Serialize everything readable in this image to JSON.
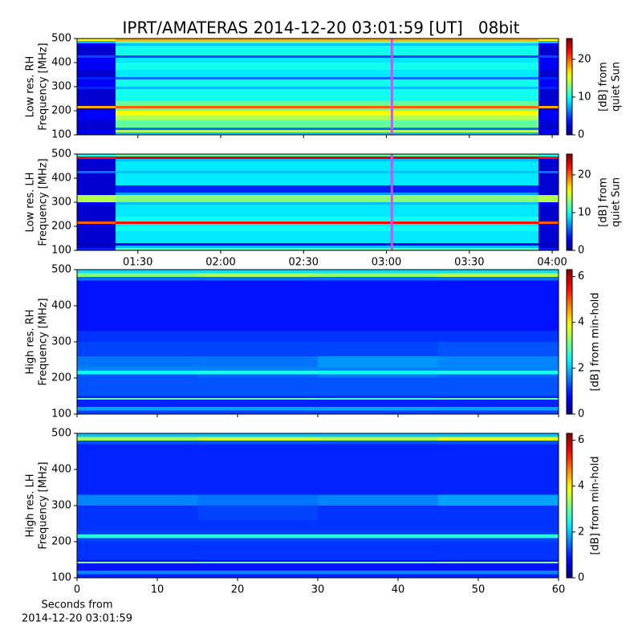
{
  "title": "IPRT/AMATERAS 2014-12-20 03:01:59 [UT]   08bit",
  "chart_data": [
    {
      "type": "heatmap",
      "ylabel": [
        "Low res. RH",
        "Frequency [MHz]"
      ],
      "ylim": [
        100,
        500
      ],
      "yticks": [
        100,
        200,
        300,
        400,
        500
      ],
      "xlim": [
        68,
        242.3
      ],
      "xticks": [
        90,
        120,
        150,
        180,
        210,
        240
      ],
      "show_xticklabels": false,
      "x_edges": [
        68,
        82,
        235,
        242.3
      ],
      "y_edges": [
        100,
        110,
        120,
        130,
        160,
        180,
        200,
        210,
        220,
        240,
        290,
        300,
        330,
        340,
        370,
        400,
        420,
        430,
        470,
        480,
        490,
        500
      ],
      "z": [
        [
          2,
          8,
          2
        ],
        [
          3,
          14,
          3
        ],
        [
          2,
          6,
          2
        ],
        [
          2,
          12,
          2
        ],
        [
          3,
          14,
          3
        ],
        [
          3,
          16,
          3
        ],
        [
          2,
          12,
          2
        ],
        [
          18,
          20,
          18
        ],
        [
          2,
          12,
          2
        ],
        [
          2,
          10,
          2
        ],
        [
          4,
          8,
          4
        ],
        [
          3,
          10,
          3
        ],
        [
          4,
          6,
          4
        ],
        [
          2,
          9,
          2
        ],
        [
          3,
          10,
          3
        ],
        [
          3,
          9,
          3
        ],
        [
          5,
          5,
          5
        ],
        [
          2,
          10,
          2
        ],
        [
          3,
          8,
          3
        ],
        [
          8,
          12,
          8
        ],
        [
          16,
          18,
          16
        ]
      ],
      "clim": [
        0,
        25.5
      ],
      "cticks": [
        0,
        10,
        20
      ],
      "clabel": [
        "[dB] from",
        "quiet Sun"
      ],
      "cursor_x": 181.98,
      "cursor_color": "#d050ff"
    },
    {
      "type": "heatmap",
      "ylabel": [
        "Low res. LH",
        "Frequency [MHz]"
      ],
      "ylim": [
        100,
        500
      ],
      "yticks": [
        100,
        200,
        300,
        400,
        500
      ],
      "xlim": [
        68,
        242.3
      ],
      "xticks": [
        {
          "value": 90,
          "label": "01:30"
        },
        {
          "value": 120,
          "label": "02:00"
        },
        {
          "value": 150,
          "label": "02:30"
        },
        {
          "value": 180,
          "label": "03:00"
        },
        {
          "value": 210,
          "label": "03:30"
        },
        {
          "value": 240,
          "label": "04:00"
        }
      ],
      "show_xticklabels": true,
      "x_edges": [
        68,
        82,
        235,
        242.3
      ],
      "y_edges": [
        100,
        110,
        120,
        130,
        160,
        180,
        200,
        210,
        220,
        240,
        290,
        300,
        330,
        340,
        370,
        400,
        420,
        430,
        470,
        480,
        490,
        500
      ],
      "z": [
        [
          4,
          12,
          4
        ],
        [
          2,
          8,
          2
        ],
        [
          1,
          3,
          1
        ],
        [
          2,
          9,
          2
        ],
        [
          2,
          9,
          2
        ],
        [
          2,
          10,
          2
        ],
        [
          3,
          9,
          3
        ],
        [
          20,
          22,
          20
        ],
        [
          2,
          10,
          2
        ],
        [
          2,
          9,
          2
        ],
        [
          3,
          8,
          3
        ],
        [
          14,
          13,
          14
        ],
        [
          2,
          7,
          2
        ],
        [
          2,
          4,
          2
        ],
        [
          2,
          9,
          2
        ],
        [
          2,
          9,
          2
        ],
        [
          6,
          8,
          6
        ],
        [
          2,
          9,
          2
        ],
        [
          2,
          8,
          2
        ],
        [
          22,
          23,
          22
        ],
        [
          10,
          12,
          10
        ]
      ],
      "clim": [
        0,
        25.5
      ],
      "cticks": [
        0,
        10,
        20
      ],
      "clabel": [
        "[dB] from",
        "quiet Sun"
      ],
      "cursor_x": 181.98,
      "cursor_color": "#d050ff"
    },
    {
      "type": "heatmap",
      "ylabel": [
        "High res. RH",
        "Frequency [MHz]"
      ],
      "ylim": [
        100,
        500
      ],
      "yticks": [
        100,
        200,
        300,
        400,
        500
      ],
      "xlim": [
        0,
        60
      ],
      "xticks": [
        0,
        10,
        20,
        30,
        40,
        50,
        60
      ],
      "show_xticklabels": false,
      "x_edges": [
        0,
        15,
        30,
        45,
        60
      ],
      "y_edges": [
        100,
        110,
        120,
        140,
        145,
        150,
        200,
        210,
        220,
        230,
        260,
        300,
        330,
        470,
        480,
        490,
        500
      ],
      "z": [
        [
          1.2,
          1.2,
          1.2,
          1.2
        ],
        [
          1.8,
          1.8,
          1.8,
          1.8
        ],
        [
          1.0,
          1.0,
          1.0,
          1.0
        ],
        [
          3.0,
          3.0,
          2.8,
          3.0
        ],
        [
          1.0,
          1.0,
          1.0,
          1.0
        ],
        [
          1.3,
          1.3,
          1.3,
          1.3
        ],
        [
          1.3,
          1.4,
          1.5,
          1.4
        ],
        [
          2.4,
          2.5,
          2.4,
          2.5
        ],
        [
          1.6,
          1.6,
          1.6,
          1.6
        ],
        [
          1.5,
          1.5,
          1.7,
          1.6
        ],
        [
          1.2,
          1.2,
          1.2,
          1.3
        ],
        [
          1.1,
          1.1,
          1.1,
          1.1
        ],
        [
          0.9,
          0.9,
          0.9,
          0.9
        ],
        [
          1.5,
          1.5,
          1.5,
          1.5
        ],
        [
          3.2,
          3.4,
          3.3,
          3.5
        ],
        [
          2.2,
          2.2,
          2.2,
          2.2
        ]
      ],
      "clim": [
        0,
        6.3
      ],
      "cticks": [
        0,
        2,
        4,
        6
      ],
      "clabel": [
        "[dB] from min-hold"
      ]
    },
    {
      "type": "heatmap",
      "ylabel": [
        "High res. LH",
        "Frequency [MHz]"
      ],
      "ylim": [
        100,
        500
      ],
      "yticks": [
        100,
        200,
        300,
        400,
        500
      ],
      "xlim": [
        0,
        60
      ],
      "xticks": [
        0,
        10,
        20,
        30,
        40,
        50,
        60
      ],
      "show_xticklabels": true,
      "xlabel": [
        "Seconds from",
        "2014-12-20 03:01:59"
      ],
      "x_edges": [
        0,
        15,
        30,
        45,
        60
      ],
      "y_edges": [
        100,
        110,
        120,
        140,
        145,
        150,
        200,
        210,
        220,
        230,
        260,
        300,
        330,
        470,
        480,
        490,
        500
      ],
      "z": [
        [
          1.0,
          1.0,
          1.0,
          1.0
        ],
        [
          1.6,
          1.6,
          1.6,
          1.6
        ],
        [
          0.9,
          0.9,
          0.9,
          0.9
        ],
        [
          3.2,
          3.0,
          3.0,
          3.2
        ],
        [
          0.9,
          0.9,
          0.9,
          0.9
        ],
        [
          1.1,
          1.1,
          1.1,
          1.1
        ],
        [
          1.2,
          1.2,
          1.2,
          1.2
        ],
        [
          2.6,
          2.6,
          2.6,
          2.6
        ],
        [
          1.2,
          1.2,
          1.2,
          1.2
        ],
        [
          1.1,
          1.1,
          1.1,
          1.1
        ],
        [
          1.1,
          1.2,
          1.1,
          1.1
        ],
        [
          1.6,
          1.5,
          1.6,
          1.8
        ],
        [
          1.0,
          1.0,
          1.0,
          1.0
        ],
        [
          1.3,
          1.3,
          1.3,
          1.3
        ],
        [
          3.4,
          3.6,
          3.5,
          3.8
        ],
        [
          2.0,
          2.0,
          2.0,
          2.0
        ]
      ],
      "clim": [
        0,
        6.3
      ],
      "cticks": [
        0,
        2,
        4,
        6
      ],
      "clabel": [
        "[dB] from min-hold"
      ]
    }
  ]
}
